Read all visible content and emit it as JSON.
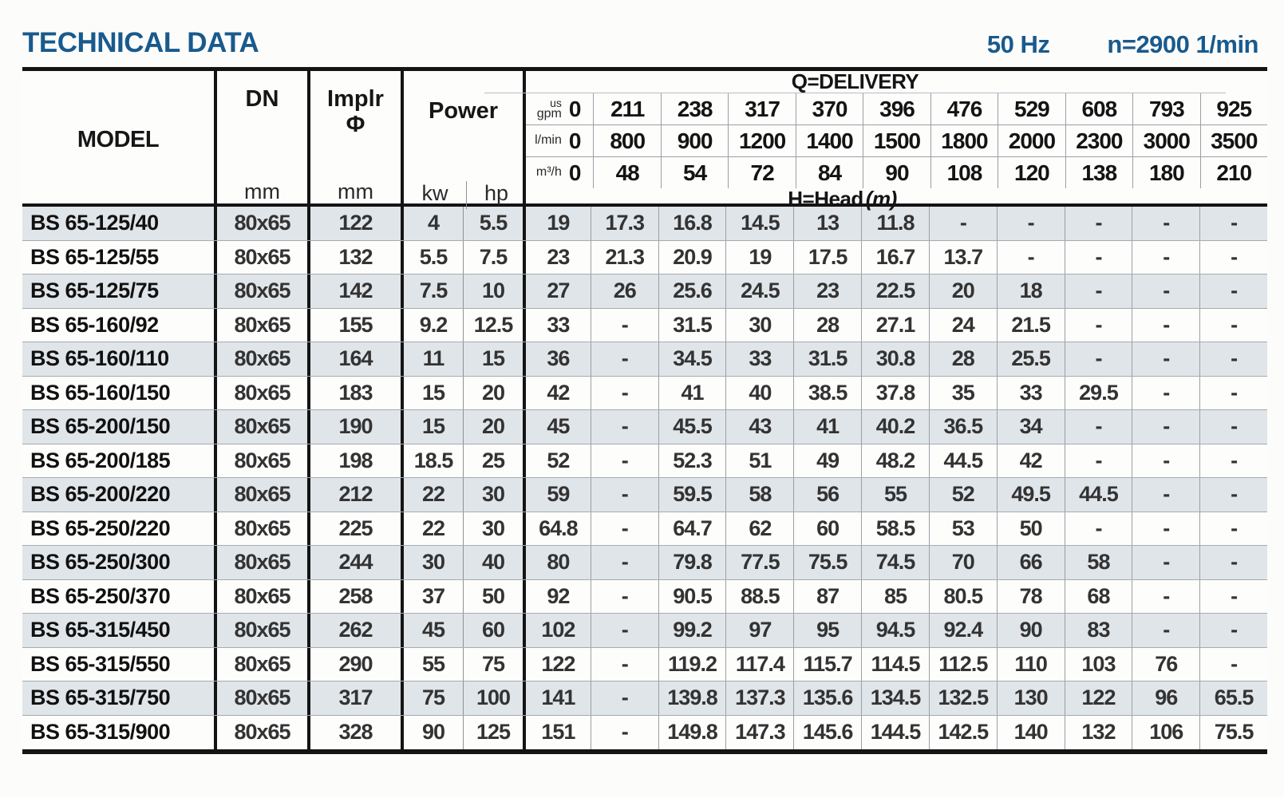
{
  "page": {
    "title": "TECHNICAL DATA",
    "frequency": "50 Hz",
    "speed": "n=2900 1/min"
  },
  "colors": {
    "accent_blue": "#185a8d",
    "row_shade": "#e0e5e9",
    "grid_thick": "#141414",
    "grid_thin": "#9aa0a4"
  },
  "table": {
    "headers": {
      "model": "MODEL",
      "dn": "DN",
      "dn_unit": "mm",
      "implr_line1": "Implr",
      "implr_line2": "Φ",
      "implr_unit": "mm",
      "power": "Power",
      "power_kw": "kw",
      "power_hp": "hp",
      "q_delivery": "Q=DELIVERY",
      "unit_usgpm_top": "us",
      "unit_usgpm_bottom": "gpm",
      "unit_lmin": "l/min",
      "unit_m3h": "m³/h",
      "head_label": "H=Head",
      "head_unit": "(m)"
    },
    "q_usgpm": [
      "0",
      "211",
      "238",
      "317",
      "370",
      "396",
      "476",
      "529",
      "608",
      "793",
      "925"
    ],
    "q_lmin": [
      "0",
      "800",
      "900",
      "1200",
      "1400",
      "1500",
      "1800",
      "2000",
      "2300",
      "3000",
      "3500"
    ],
    "q_m3h": [
      "0",
      "48",
      "54",
      "72",
      "84",
      "90",
      "108",
      "120",
      "138",
      "180",
      "210"
    ],
    "rows": [
      {
        "model": "BS 65-125/40",
        "dn": "80x65",
        "implr": "122",
        "kw": "4",
        "hp": "5.5",
        "heads": [
          "19",
          "17.3",
          "16.8",
          "14.5",
          "13",
          "11.8",
          "-",
          "-",
          "-",
          "-",
          "-"
        ]
      },
      {
        "model": "BS 65-125/55",
        "dn": "80x65",
        "implr": "132",
        "kw": "5.5",
        "hp": "7.5",
        "heads": [
          "23",
          "21.3",
          "20.9",
          "19",
          "17.5",
          "16.7",
          "13.7",
          "-",
          "-",
          "-",
          "-"
        ]
      },
      {
        "model": "BS 65-125/75",
        "dn": "80x65",
        "implr": "142",
        "kw": "7.5",
        "hp": "10",
        "heads": [
          "27",
          "26",
          "25.6",
          "24.5",
          "23",
          "22.5",
          "20",
          "18",
          "-",
          "-",
          "-"
        ]
      },
      {
        "model": "BS 65-160/92",
        "dn": "80x65",
        "implr": "155",
        "kw": "9.2",
        "hp": "12.5",
        "heads": [
          "33",
          "-",
          "31.5",
          "30",
          "28",
          "27.1",
          "24",
          "21.5",
          "-",
          "-",
          "-"
        ]
      },
      {
        "model": "BS 65-160/110",
        "dn": "80x65",
        "implr": "164",
        "kw": "11",
        "hp": "15",
        "heads": [
          "36",
          "-",
          "34.5",
          "33",
          "31.5",
          "30.8",
          "28",
          "25.5",
          "-",
          "-",
          "-"
        ]
      },
      {
        "model": "BS 65-160/150",
        "dn": "80x65",
        "implr": "183",
        "kw": "15",
        "hp": "20",
        "heads": [
          "42",
          "-",
          "41",
          "40",
          "38.5",
          "37.8",
          "35",
          "33",
          "29.5",
          "-",
          "-"
        ]
      },
      {
        "model": "BS 65-200/150",
        "dn": "80x65",
        "implr": "190",
        "kw": "15",
        "hp": "20",
        "heads": [
          "45",
          "-",
          "45.5",
          "43",
          "41",
          "40.2",
          "36.5",
          "34",
          "-",
          "-",
          "-"
        ]
      },
      {
        "model": "BS 65-200/185",
        "dn": "80x65",
        "implr": "198",
        "kw": "18.5",
        "hp": "25",
        "heads": [
          "52",
          "-",
          "52.3",
          "51",
          "49",
          "48.2",
          "44.5",
          "42",
          "-",
          "-",
          "-"
        ]
      },
      {
        "model": "BS 65-200/220",
        "dn": "80x65",
        "implr": "212",
        "kw": "22",
        "hp": "30",
        "heads": [
          "59",
          "-",
          "59.5",
          "58",
          "56",
          "55",
          "52",
          "49.5",
          "44.5",
          "-",
          "-"
        ]
      },
      {
        "model": "BS 65-250/220",
        "dn": "80x65",
        "implr": "225",
        "kw": "22",
        "hp": "30",
        "heads": [
          "64.8",
          "-",
          "64.7",
          "62",
          "60",
          "58.5",
          "53",
          "50",
          "-",
          "-",
          "-"
        ]
      },
      {
        "model": "BS 65-250/300",
        "dn": "80x65",
        "implr": "244",
        "kw": "30",
        "hp": "40",
        "heads": [
          "80",
          "-",
          "79.8",
          "77.5",
          "75.5",
          "74.5",
          "70",
          "66",
          "58",
          "-",
          "-"
        ]
      },
      {
        "model": "BS 65-250/370",
        "dn": "80x65",
        "implr": "258",
        "kw": "37",
        "hp": "50",
        "heads": [
          "92",
          "-",
          "90.5",
          "88.5",
          "87",
          "85",
          "80.5",
          "78",
          "68",
          "-",
          "-"
        ]
      },
      {
        "model": "BS 65-315/450",
        "dn": "80x65",
        "implr": "262",
        "kw": "45",
        "hp": "60",
        "heads": [
          "102",
          "-",
          "99.2",
          "97",
          "95",
          "94.5",
          "92.4",
          "90",
          "83",
          "-",
          "-"
        ]
      },
      {
        "model": "BS 65-315/550",
        "dn": "80x65",
        "implr": "290",
        "kw": "55",
        "hp": "75",
        "heads": [
          "122",
          "-",
          "119.2",
          "117.4",
          "115.7",
          "114.5",
          "112.5",
          "110",
          "103",
          "76",
          "-"
        ]
      },
      {
        "model": "BS 65-315/750",
        "dn": "80x65",
        "implr": "317",
        "kw": "75",
        "hp": "100",
        "heads": [
          "141",
          "-",
          "139.8",
          "137.3",
          "135.6",
          "134.5",
          "132.5",
          "130",
          "122",
          "96",
          "65.5"
        ]
      },
      {
        "model": "BS 65-315/900",
        "dn": "80x65",
        "implr": "328",
        "kw": "90",
        "hp": "125",
        "heads": [
          "151",
          "-",
          "149.8",
          "147.3",
          "145.6",
          "144.5",
          "142.5",
          "140",
          "132",
          "106",
          "75.5"
        ]
      }
    ]
  }
}
